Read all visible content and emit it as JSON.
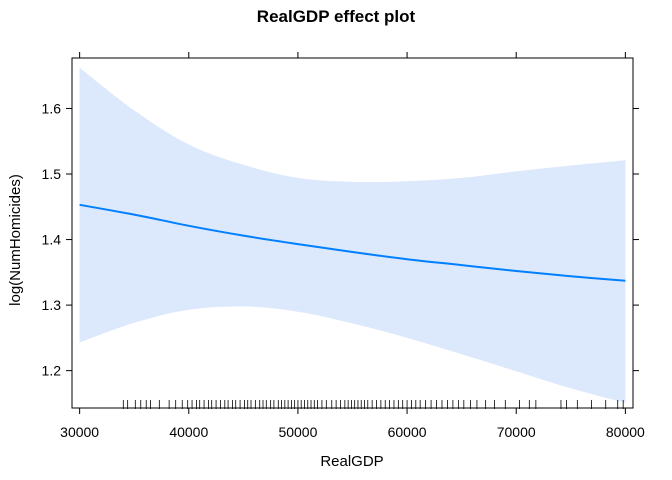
{
  "chart_data": {
    "type": "line",
    "title": "RealGDP effect plot",
    "xlabel": "RealGDP",
    "ylabel": "log(NumHomicides)",
    "xlim": [
      29300,
      80700
    ],
    "ylim": [
      1.143,
      1.677
    ],
    "x_ticks": [
      30000,
      40000,
      50000,
      60000,
      70000,
      80000
    ],
    "x_tick_labels": [
      "30000",
      "40000",
      "50000",
      "60000",
      "70000",
      "80000"
    ],
    "y_ticks": [
      1.2,
      1.3,
      1.4,
      1.5,
      1.6
    ],
    "y_tick_labels": [
      "1.2",
      "1.3",
      "1.4",
      "1.5",
      "1.6"
    ],
    "grid": false,
    "legend": "none",
    "colors": {
      "line": "#0080ff",
      "band": "#dce8fc",
      "frame": "#000000",
      "rug": "#000000"
    },
    "series": [
      {
        "x": [
          30000,
          35000,
          40000,
          45000,
          50000,
          55000,
          60000,
          65000,
          70000,
          75000,
          80000
        ],
        "fit": [
          1.453,
          1.438,
          1.421,
          1.406,
          1.393,
          1.381,
          1.37,
          1.361,
          1.352,
          1.344,
          1.337
        ],
        "upper": [
          1.662,
          1.597,
          1.545,
          1.514,
          1.494,
          1.488,
          1.489,
          1.494,
          1.504,
          1.513,
          1.521
        ],
        "lower": [
          1.243,
          1.273,
          1.293,
          1.298,
          1.29,
          1.272,
          1.25,
          1.225,
          1.199,
          1.173,
          1.151
        ]
      }
    ],
    "rug_x": [
      34000,
      34400,
      35100,
      35600,
      36100,
      36500,
      37300,
      38200,
      38800,
      39400,
      39900,
      40300,
      40700,
      41000,
      41400,
      41800,
      42100,
      42500,
      42900,
      43300,
      43600,
      44000,
      44300,
      44700,
      45100,
      45400,
      45700,
      46100,
      46500,
      46800,
      47100,
      47500,
      47800,
      48200,
      48500,
      48800,
      49100,
      49400,
      49700,
      50000,
      50300,
      50600,
      50900,
      51200,
      51500,
      51800,
      52200,
      52600,
      53100,
      53500,
      53900,
      54300,
      54600,
      54900,
      55200,
      55500,
      55800,
      56100,
      56400,
      56800,
      57200,
      57600,
      58000,
      58400,
      58800,
      59200,
      59600,
      60000,
      60400,
      60800,
      61200,
      61700,
      62200,
      62700,
      63200,
      63700,
      64200,
      64700,
      65200,
      65800,
      66400,
      67200,
      68000,
      69000,
      70300,
      71200,
      71800,
      74100,
      74600,
      75600,
      76900,
      78200,
      79300,
      79800
    ]
  }
}
